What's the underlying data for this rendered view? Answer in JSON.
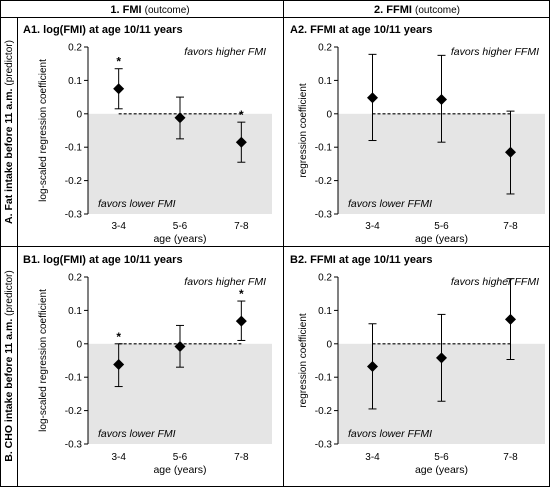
{
  "columns": [
    {
      "number": "1.",
      "name": "FMI",
      "note": "(outcome)"
    },
    {
      "number": "2.",
      "name": "FFMI",
      "note": "(outcome)"
    }
  ],
  "rows": [
    {
      "title": "A. Fat intake before 11 a.m.",
      "note": "(predictor)"
    },
    {
      "title": "B. CHO intake before 11 a.m.",
      "note": "(predictor)"
    }
  ],
  "chart_data": [
    {
      "type": "scatter",
      "panel_title": "A1. log(FMI) at age 10/11 years",
      "ylabel": "log-scaled regression coefficient",
      "xlabel": "age (years)",
      "categories": [
        "3-4",
        "5-6",
        "7-8"
      ],
      "values": [
        0.075,
        -0.012,
        -0.085
      ],
      "ci_low": [
        0.015,
        -0.075,
        -0.145
      ],
      "ci_high": [
        0.135,
        0.05,
        -0.025
      ],
      "significant": [
        true,
        false,
        true
      ],
      "ylim": [
        -0.3,
        0.2
      ],
      "yticks": [
        "0.2",
        "0.1",
        "0",
        "-0.1",
        "-0.2",
        "-0.3"
      ],
      "annotation_top": "favors higher FMI",
      "annotation_bottom": "favors lower FMI",
      "shade_below_zero": true,
      "reference_line": 0,
      "colors": {
        "marker": "#000000",
        "shade": "#e5e5e5"
      }
    },
    {
      "type": "scatter",
      "panel_title": "A2. FFMI at age 10/11 years",
      "ylabel": "regression coefficient",
      "xlabel": "age (years)",
      "categories": [
        "3-4",
        "5-6",
        "7-8"
      ],
      "values": [
        0.048,
        0.043,
        -0.115
      ],
      "ci_low": [
        -0.08,
        -0.085,
        -0.24
      ],
      "ci_high": [
        0.178,
        0.175,
        0.008
      ],
      "significant": [
        false,
        false,
        false
      ],
      "ylim": [
        -0.3,
        0.2
      ],
      "yticks": [
        "0.2",
        "0.1",
        "0",
        "-0.1",
        "-0.2",
        "-0.3"
      ],
      "annotation_top": "favors higher FFMI",
      "annotation_bottom": "favors lower FFMI",
      "shade_below_zero": true,
      "reference_line": 0,
      "colors": {
        "marker": "#000000",
        "shade": "#e5e5e5"
      }
    },
    {
      "type": "scatter",
      "panel_title": "B1. log(FMI) at age 10/11 years",
      "ylabel": "log-scaled regression coefficient",
      "xlabel": "age (years)",
      "categories": [
        "3-4",
        "5-6",
        "7-8"
      ],
      "values": [
        -0.062,
        -0.008,
        0.068
      ],
      "ci_low": [
        -0.128,
        -0.07,
        0.01
      ],
      "ci_high": [
        0.0,
        0.055,
        0.128
      ],
      "significant": [
        true,
        false,
        true
      ],
      "ylim": [
        -0.3,
        0.2
      ],
      "yticks": [
        "0.2",
        "0.1",
        "0",
        "-0.1",
        "-0.2",
        "-0.3"
      ],
      "annotation_top": "favors higher FMI",
      "annotation_bottom": "favors lower FMI",
      "shade_below_zero": true,
      "reference_line": 0,
      "colors": {
        "marker": "#000000",
        "shade": "#e5e5e5"
      }
    },
    {
      "type": "scatter",
      "panel_title": "B2. FFMI at age 10/11 years",
      "ylabel": "regression coefficient",
      "xlabel": "age (years)",
      "categories": [
        "3-4",
        "5-6",
        "7-8"
      ],
      "values": [
        -0.068,
        -0.042,
        0.073
      ],
      "ci_low": [
        -0.195,
        -0.172,
        -0.047
      ],
      "ci_high": [
        0.06,
        0.088,
        0.195
      ],
      "significant": [
        false,
        false,
        false
      ],
      "ylim": [
        -0.3,
        0.2
      ],
      "yticks": [
        "0.2",
        "0.1",
        "0",
        "-0.1",
        "-0.2",
        "-0.3"
      ],
      "annotation_top": "favors higher FFMI",
      "annotation_bottom": "favors lower FFMI",
      "shade_below_zero": true,
      "reference_line": 0,
      "colors": {
        "marker": "#000000",
        "shade": "#e5e5e5"
      }
    }
  ]
}
